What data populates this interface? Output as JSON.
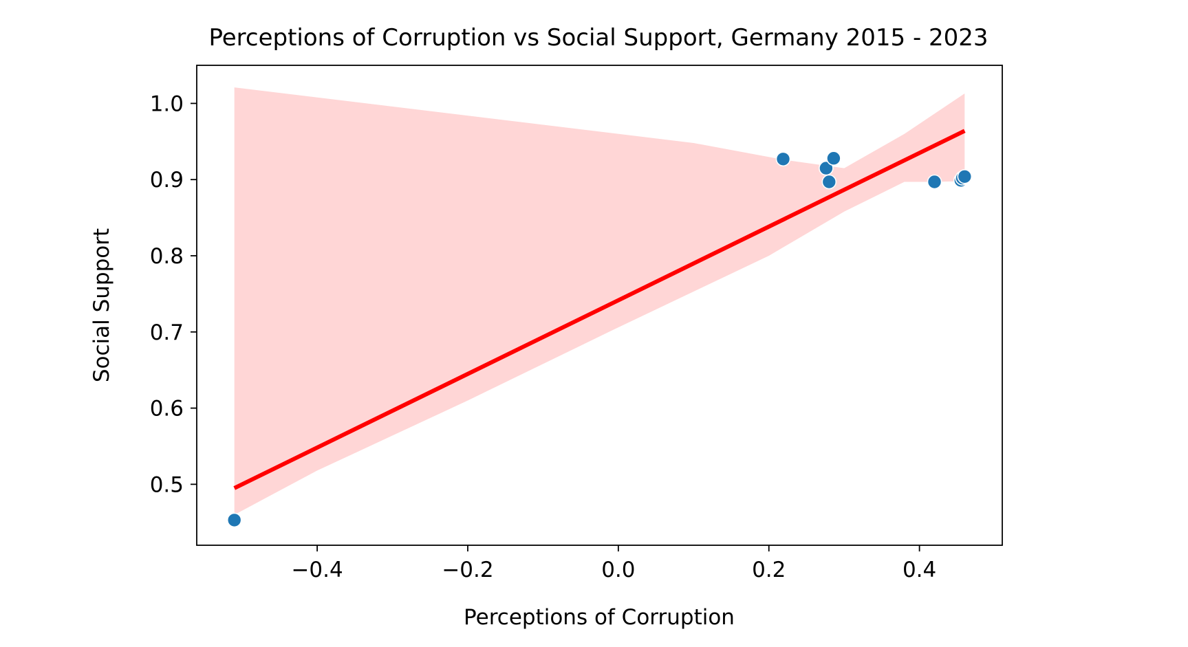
{
  "chart_data": {
    "type": "scatter",
    "title": "Perceptions of Corruption vs Social Support, Germany 2015 - 2023",
    "xlabel": "Perceptions of Corruption",
    "ylabel": "Social Support",
    "xlim": [
      -0.56,
      0.51
    ],
    "ylim": [
      0.42,
      1.05
    ],
    "xticks": [
      -0.4,
      -0.2,
      0.0,
      0.2,
      0.4
    ],
    "xtick_labels": [
      "−0.4",
      "−0.2",
      "0.0",
      "0.2",
      "0.4"
    ],
    "yticks": [
      0.5,
      0.6,
      0.7,
      0.8,
      0.9,
      1.0
    ],
    "ytick_labels": [
      "0.5",
      "0.6",
      "0.7",
      "0.8",
      "0.9",
      "1.0"
    ],
    "grid": false,
    "points": [
      {
        "x": -0.51,
        "y": 0.453
      },
      {
        "x": 0.219,
        "y": 0.927
      },
      {
        "x": 0.276,
        "y": 0.915
      },
      {
        "x": 0.286,
        "y": 0.928
      },
      {
        "x": 0.28,
        "y": 0.897
      },
      {
        "x": 0.42,
        "y": 0.897
      },
      {
        "x": 0.455,
        "y": 0.899
      },
      {
        "x": 0.457,
        "y": 0.902
      },
      {
        "x": 0.46,
        "y": 0.904
      }
    ],
    "regression_line": {
      "x": [
        -0.51,
        0.46
      ],
      "y": [
        0.495,
        0.964
      ]
    },
    "confidence_band": {
      "upper": [
        {
          "x": -0.51,
          "y": 1.021
        },
        {
          "x": 0.1,
          "y": 0.948
        },
        {
          "x": 0.22,
          "y": 0.926
        },
        {
          "x": 0.3,
          "y": 0.915
        },
        {
          "x": 0.38,
          "y": 0.96
        },
        {
          "x": 0.46,
          "y": 1.013
        }
      ],
      "lower": [
        {
          "x": 0.46,
          "y": 0.898
        },
        {
          "x": 0.42,
          "y": 0.897
        },
        {
          "x": 0.38,
          "y": 0.897
        },
        {
          "x": 0.3,
          "y": 0.858
        },
        {
          "x": 0.2,
          "y": 0.8
        },
        {
          "x": 0.0,
          "y": 0.706
        },
        {
          "x": -0.2,
          "y": 0.61
        },
        {
          "x": -0.4,
          "y": 0.518
        },
        {
          "x": -0.51,
          "y": 0.46
        }
      ]
    },
    "colors": {
      "points": "#1f77b4",
      "line": "#ff0000",
      "band": "#ffd6d6"
    }
  }
}
